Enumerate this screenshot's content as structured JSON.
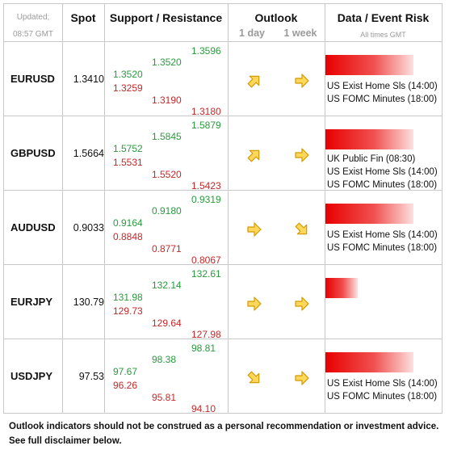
{
  "header": {
    "updated_label": "Updated;",
    "updated_time": "08:57 GMT",
    "spot": "Spot",
    "support_resistance": "Support / Resistance",
    "outlook": "Outlook",
    "outlook_1day": "1 day",
    "outlook_1week": "1 week",
    "data_event_risk": "Data / Event Risk",
    "all_times": "All times GMT"
  },
  "rows": [
    {
      "pair": "EURUSD",
      "spot": "1.3410",
      "s1": "1.3520",
      "s2": "1.3259",
      "m1": "1.3520",
      "m2": "1.3190",
      "l1": "1.3596",
      "l2": "1.3180",
      "outlook_day": "up-right-arrow-icon",
      "outlook_week": "right-arrow-icon",
      "event_risk_level": 0.74,
      "events": [
        "US Exist Home Sls (14:00)",
        "US FOMC Minutes (18:00)"
      ]
    },
    {
      "pair": "GBPUSD",
      "spot": "1.5664",
      "s1": "1.5752",
      "s2": "1.5531",
      "m1": "1.5845",
      "m2": "1.5520",
      "l1": "1.5879",
      "l2": "1.5423",
      "outlook_day": "up-right-arrow-icon",
      "outlook_week": "right-arrow-icon",
      "event_risk_level": 0.74,
      "events": [
        "UK Public Fin (08:30)",
        "US Exist Home Sls (14:00)",
        "US FOMC Minutes (18:00)"
      ]
    },
    {
      "pair": "AUDUSD",
      "spot": "0.9033",
      "s1": "0.9164",
      "s2": "0.8848",
      "m1": "0.9180",
      "m2": "0.8771",
      "l1": "0.9319",
      "l2": "0.8067",
      "outlook_day": "right-arrow-icon",
      "outlook_week": "down-right-arrow-icon",
      "event_risk_level": 0.74,
      "events": [
        "US Exist Home Sls (14:00)",
        "US FOMC Minutes (18:00)"
      ]
    },
    {
      "pair": "EURJPY",
      "spot": "130.79",
      "s1": "131.98",
      "s2": "129.73",
      "m1": "132.14",
      "m2": "129.64",
      "l1": "132.61",
      "l2": "127.98",
      "outlook_day": "right-arrow-icon",
      "outlook_week": "right-arrow-icon",
      "event_risk_level": 0.27,
      "events": []
    },
    {
      "pair": "USDJPY",
      "spot": "97.53",
      "s1": "97.67",
      "s2": "96.26",
      "m1": "98.38",
      "m2": "95.81",
      "l1": "98.81",
      "l2": "94.10",
      "outlook_day": "down-right-arrow-icon",
      "outlook_week": "right-arrow-icon",
      "event_risk_level": 0.74,
      "events": [
        "US Exist Home Sls (14:00)",
        "US FOMC Minutes (18:00)"
      ]
    }
  ],
  "footer": {
    "line1": "Outlook indicators should not be construed as a personal recommendation or investment advice.",
    "line2": "See full disclaimer below."
  },
  "colors": {
    "resistance_green": "#2a9a3e",
    "support_red": "#c62828",
    "arrow_fill": "#ffd75a",
    "arrow_stroke": "#d19a00",
    "risk_bar": "#e80000"
  }
}
